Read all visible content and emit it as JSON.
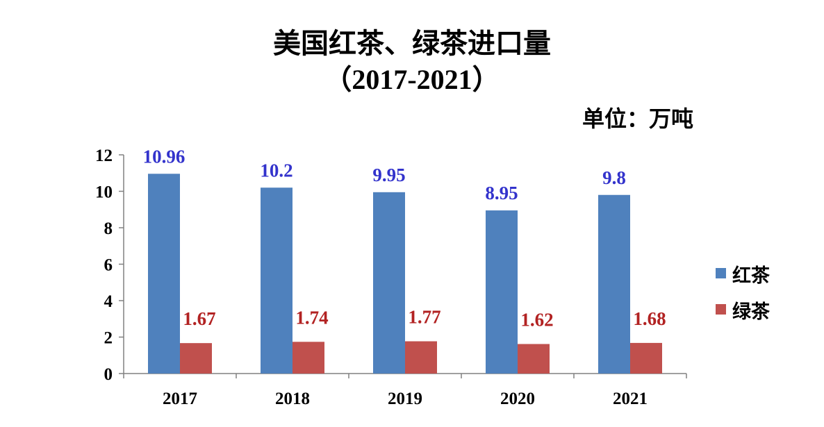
{
  "chart_data": {
    "type": "bar",
    "title": "美国红茶、绿茶进口量",
    "subtitle": "（2017-2021）",
    "unit_label": "单位：万吨",
    "categories": [
      "2017",
      "2018",
      "2019",
      "2020",
      "2021"
    ],
    "series": [
      {
        "name": "红茶",
        "values": [
          10.96,
          10.2,
          9.95,
          8.95,
          9.8
        ],
        "labels": [
          "10.96",
          "10.2",
          "9.95",
          "8.95",
          "9.8"
        ],
        "color": "#4F81BD",
        "label_color": "#3333CC"
      },
      {
        "name": "绿茶",
        "values": [
          1.67,
          1.74,
          1.77,
          1.62,
          1.68
        ],
        "labels": [
          "1.67",
          "1.74",
          "1.77",
          "1.62",
          "1.68"
        ],
        "color": "#C0504D",
        "label_color": "#B22222"
      }
    ],
    "y_ticks": [
      "0",
      "2",
      "4",
      "6",
      "8",
      "10",
      "12"
    ],
    "ylim": [
      0,
      12
    ],
    "grid": false,
    "legend_position": "right"
  }
}
